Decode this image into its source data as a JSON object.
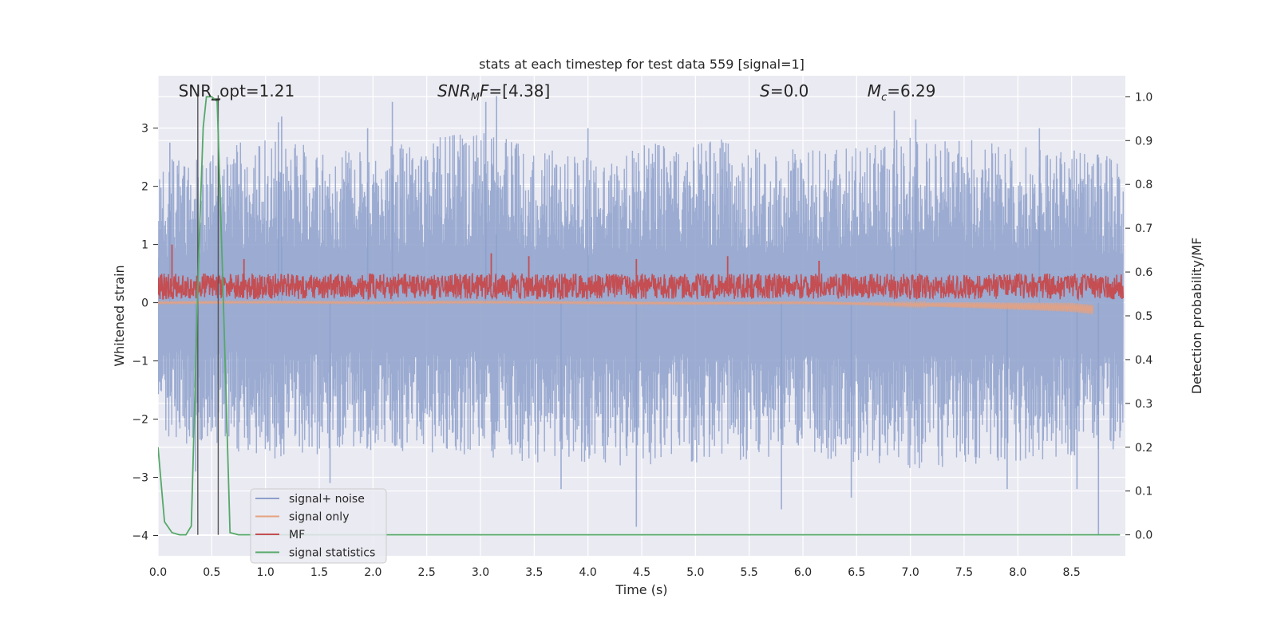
{
  "chart_data": {
    "type": "line",
    "title": "stats at each timestep for test data 559 [signal=1]",
    "xlabel": "Time (s)",
    "ylabel_left": "Whitened strain",
    "ylabel_right": "Detection probability/MF",
    "xlim": [
      0.0,
      9.0
    ],
    "ylim_left": [
      -4.35,
      3.9
    ],
    "ylim_right": [
      -0.048,
      1.048
    ],
    "x_ticks": [
      0.0,
      0.5,
      1.0,
      1.5,
      2.0,
      2.5,
      3.0,
      3.5,
      4.0,
      4.5,
      5.0,
      5.5,
      6.0,
      6.5,
      7.0,
      7.5,
      8.0,
      8.5
    ],
    "x_tick_labels": [
      "0.0",
      "0.5",
      "1.0",
      "1.5",
      "2.0",
      "2.5",
      "3.0",
      "3.5",
      "4.0",
      "4.5",
      "5.0",
      "5.5",
      "6.0",
      "6.5",
      "7.0",
      "7.5",
      "8.0",
      "8.5"
    ],
    "y_left_ticks": [
      -4,
      -3,
      -2,
      -1,
      0,
      1,
      2,
      3
    ],
    "y_left_tick_labels": [
      "−4",
      "−3",
      "−2",
      "−1",
      "0",
      "1",
      "2",
      "3"
    ],
    "y_right_ticks": [
      0.0,
      0.1,
      0.2,
      0.3,
      0.4,
      0.5,
      0.6,
      0.7,
      0.8,
      0.9,
      1.0
    ],
    "y_right_tick_labels": [
      "0.0",
      "0.1",
      "0.2",
      "0.3",
      "0.4",
      "0.5",
      "0.6",
      "0.7",
      "0.8",
      "0.9",
      "1.0"
    ],
    "grid": true,
    "legend_position": "lower-left",
    "annotations": [
      {
        "key": "snr_opt",
        "text": "SNR_opt=1.21",
        "x": 0.19
      },
      {
        "key": "snr_mf",
        "text": "SNR_MF=[4.38]",
        "x": 2.6
      },
      {
        "key": "s",
        "text": "S=0.0",
        "x": 5.6
      },
      {
        "key": "mc",
        "text": "M_c=6.29",
        "x": 6.6
      }
    ],
    "vertical_markers": [
      0.37,
      0.56
    ],
    "series": [
      {
        "name": "signal+ noise",
        "axis": "left",
        "color": "#8da0cb",
        "opacity": 0.85,
        "envelope_upper": [
          [
            0.0,
            2.2
          ],
          [
            1.0,
            2.6
          ],
          [
            2.0,
            2.4
          ],
          [
            3.0,
            2.7
          ],
          [
            4.0,
            2.3
          ],
          [
            5.0,
            2.6
          ],
          [
            6.0,
            2.4
          ],
          [
            7.0,
            2.6
          ],
          [
            8.0,
            2.5
          ],
          [
            9.0,
            2.3
          ]
        ],
        "envelope_lower": [
          [
            0.0,
            -2.1
          ],
          [
            1.0,
            -2.5
          ],
          [
            2.0,
            -2.3
          ],
          [
            3.0,
            -2.4
          ],
          [
            4.0,
            -2.6
          ],
          [
            5.0,
            -2.5
          ],
          [
            6.0,
            -2.4
          ],
          [
            7.0,
            -2.6
          ],
          [
            8.0,
            -2.5
          ],
          [
            9.0,
            -2.3
          ]
        ],
        "peaks": [
          [
            0.11,
            2.75
          ],
          [
            1.12,
            3.1
          ],
          [
            1.15,
            3.2
          ],
          [
            1.95,
            3.0
          ],
          [
            2.18,
            3.45
          ],
          [
            3.15,
            3.55
          ],
          [
            3.05,
            3.45
          ],
          [
            4.0,
            3.0
          ],
          [
            6.85,
            3.3
          ],
          [
            7.05,
            3.15
          ],
          [
            8.2,
            3.0
          ]
        ],
        "troughs": [
          [
            0.35,
            -2.9
          ],
          [
            1.6,
            -3.1
          ],
          [
            3.75,
            -3.2
          ],
          [
            4.45,
            -3.85
          ],
          [
            5.8,
            -3.55
          ],
          [
            6.45,
            -3.35
          ],
          [
            7.9,
            -3.2
          ],
          [
            8.75,
            -4.0
          ],
          [
            8.55,
            -3.2
          ]
        ]
      },
      {
        "name": "signal only",
        "axis": "left",
        "color": "#e5a17f",
        "opacity": 0.9,
        "points": [
          [
            0.0,
            0.0
          ],
          [
            1.0,
            0.01
          ],
          [
            2.0,
            0.0
          ],
          [
            3.0,
            0.01
          ],
          [
            4.0,
            0.0
          ],
          [
            5.0,
            -0.01
          ],
          [
            6.0,
            0.0
          ],
          [
            7.0,
            -0.03
          ],
          [
            7.5,
            -0.04
          ],
          [
            8.0,
            -0.06
          ],
          [
            8.5,
            -0.08
          ],
          [
            8.7,
            -0.12
          ]
        ]
      },
      {
        "name": "MF",
        "axis": "left",
        "color": "#c44e52",
        "opacity": 1.0,
        "band_center": 0.28,
        "band_halfwidth": 0.22,
        "peaks": [
          [
            0.13,
            1.0
          ],
          [
            0.8,
            0.75
          ],
          [
            3.1,
            0.85
          ],
          [
            3.45,
            0.8
          ],
          [
            4.45,
            0.75
          ],
          [
            5.3,
            0.8
          ],
          [
            6.15,
            0.72
          ]
        ]
      },
      {
        "name": "signal statistics",
        "axis": "right",
        "color": "#55a868",
        "opacity": 1.0,
        "points": [
          [
            0.0,
            0.2
          ],
          [
            0.06,
            0.03
          ],
          [
            0.13,
            0.005
          ],
          [
            0.2,
            0.0
          ],
          [
            0.26,
            0.0
          ],
          [
            0.31,
            0.02
          ],
          [
            0.38,
            0.65
          ],
          [
            0.42,
            0.93
          ],
          [
            0.45,
            1.0
          ],
          [
            0.5,
            1.0
          ],
          [
            0.55,
            0.99
          ],
          [
            0.6,
            0.6
          ],
          [
            0.67,
            0.005
          ],
          [
            0.75,
            0.0
          ],
          [
            8.95,
            0.0
          ]
        ]
      }
    ]
  }
}
